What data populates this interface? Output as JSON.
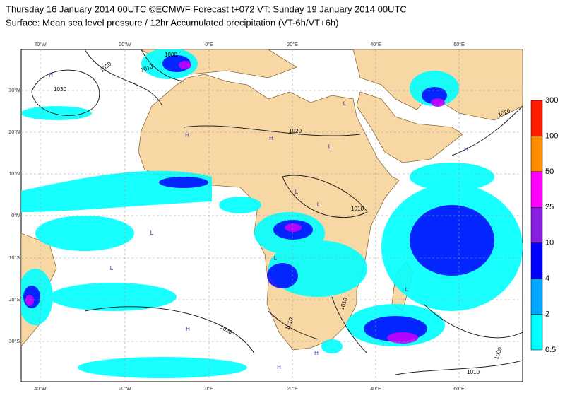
{
  "header": {
    "line1": "Thursday 16 January 2014 00UTC ©ECMWF Forecast t+072 VT: Sunday 19 January 2014 00UTC",
    "line2": "Surface: Mean sea level pressure / 12hr Accumulated precipitation (VT-6h/VT+6h)"
  },
  "map": {
    "lon_labels": [
      "40°W",
      "20°W",
      "0°E",
      "20°E",
      "40°E",
      "60°E"
    ],
    "lat_labels": [
      "30°N",
      "20°N",
      "10°N",
      "0°N",
      "10°S",
      "20°S",
      "30°S"
    ],
    "isobar_labels": [
      "1030",
      "1020",
      "1010",
      "1000",
      "1020",
      "1010",
      "1020",
      "1010",
      "1010",
      "1020",
      "1020",
      "1010"
    ],
    "pressure_centers": [
      "H",
      "H",
      "H",
      "L",
      "L",
      "L",
      "L",
      "H",
      "L",
      "L",
      "L",
      "L",
      "H",
      "H",
      "H",
      "L"
    ]
  },
  "colorbar": {
    "labels": [
      "0.5",
      "2",
      "4",
      "10",
      "25",
      "50",
      "100",
      "300"
    ],
    "colors": [
      "#00ffff",
      "#00a8ff",
      "#0000ff",
      "#8a1ee0",
      "#ff00ff",
      "#ff8c00",
      "#ff1a00"
    ]
  }
}
